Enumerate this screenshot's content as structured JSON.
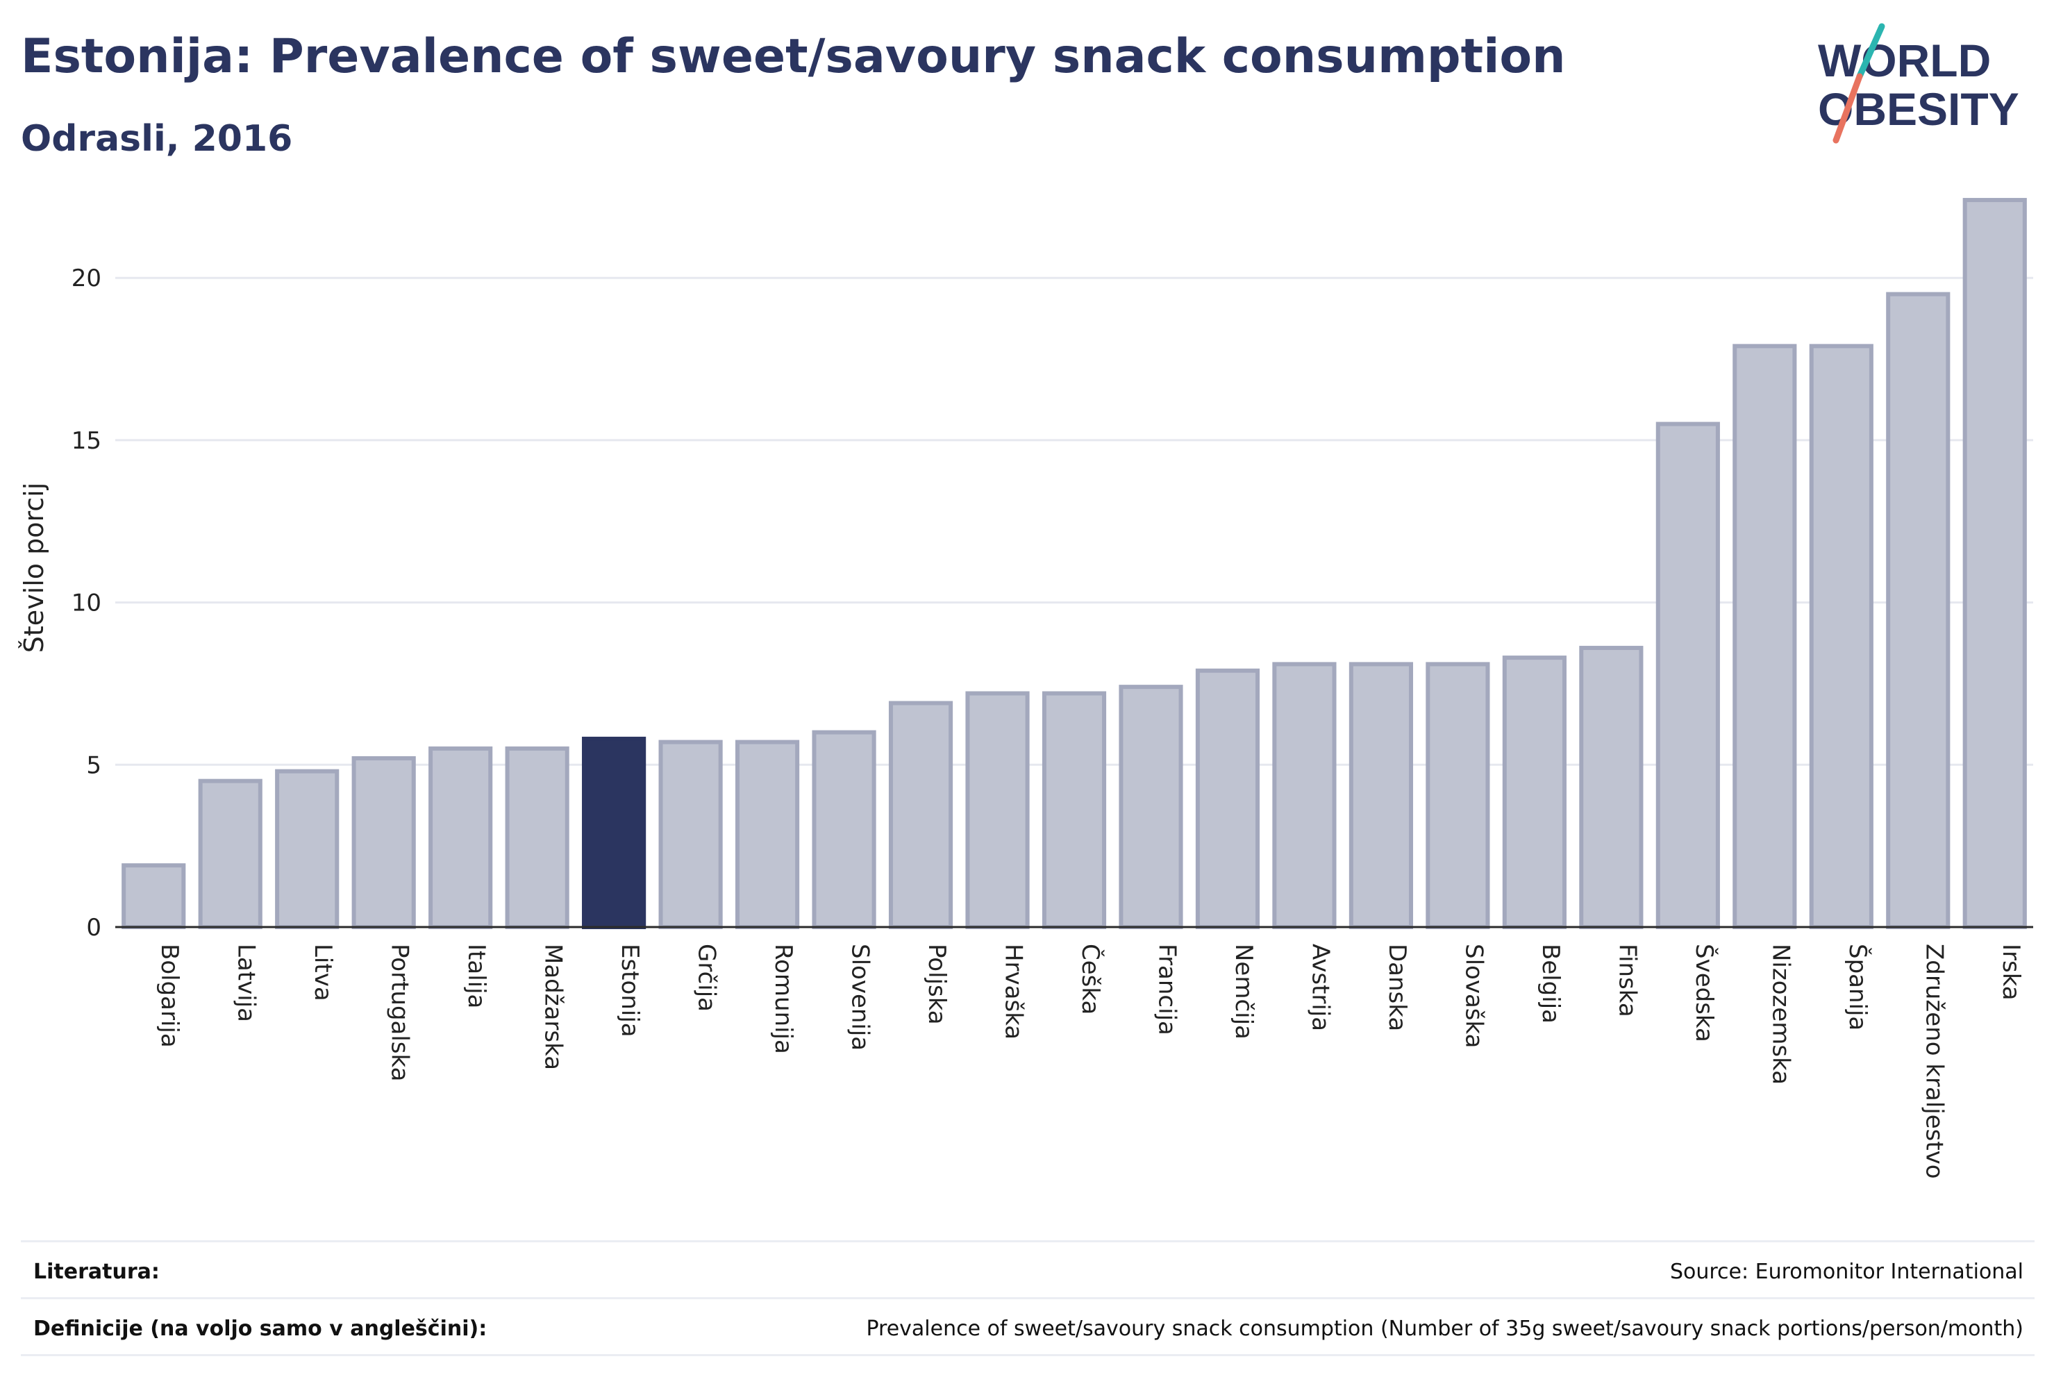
{
  "header": {
    "title": "Estonija: Prevalence of sweet/savoury snack consumption",
    "subtitle": "Odrasli, 2016"
  },
  "logo": {
    "line1": "WORLD",
    "line2": "OBESITY",
    "accent_colors": [
      "#2bb5b0",
      "#e8735f"
    ]
  },
  "colors": {
    "bar": "#bfc3d1",
    "bar_stroke": "#a3a8bd",
    "highlight": "#2b3560",
    "grid": "#e6e8ef",
    "axis": "#2b2b2b",
    "text": "#2b3560"
  },
  "chart_data": {
    "type": "bar",
    "ylabel": "Število porcij",
    "xlabel": "",
    "ylim": [
      0,
      23
    ],
    "yticks": [
      0,
      5,
      10,
      15,
      20
    ],
    "grid": true,
    "highlight": "Estonija",
    "categories": [
      "Bolgarija",
      "Latvija",
      "Litva",
      "Portugalska",
      "Italija",
      "Madžarska",
      "Estonija",
      "Grčija",
      "Romunija",
      "Slovenija",
      "Poljska",
      "Hrvaška",
      "Češka",
      "Francija",
      "Nemčija",
      "Avstrija",
      "Danska",
      "Slovaška",
      "Belgija",
      "Finska",
      "Švedska",
      "Nizozemska",
      "Španija",
      "Združeno kraljestvo",
      "Irska"
    ],
    "values": [
      1.9,
      4.5,
      4.8,
      5.2,
      5.5,
      5.5,
      5.8,
      5.7,
      5.7,
      6.0,
      6.9,
      7.2,
      7.2,
      7.4,
      7.9,
      8.1,
      8.1,
      8.1,
      8.3,
      8.6,
      15.5,
      17.9,
      17.9,
      19.5,
      22.4
    ]
  },
  "footer": {
    "literature_label": "Literatura:",
    "literature_value": "Source: Euromonitor International",
    "definition_label": "Definicije (na voljo samo v angleščini):",
    "definition_value": "Prevalence of sweet/savoury snack consumption (Number of 35g sweet/savoury snack portions/person/month)"
  }
}
